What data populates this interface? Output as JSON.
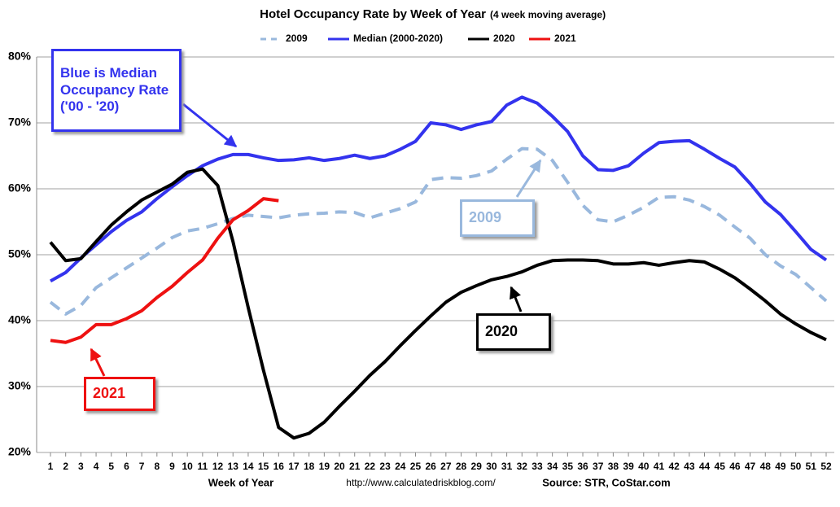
{
  "chart_data": {
    "type": "line",
    "title": "Hotel Occupancy Rate by  Week of Year",
    "subtitle": "(4 week moving average)",
    "x_label": "Week of Year",
    "footer_url": "http://www.calculatedriskblog.com/",
    "source": "Source: STR, CoStar.com",
    "categories": [
      "1",
      "2",
      "3",
      "4",
      "5",
      "6",
      "7",
      "8",
      "9",
      "10",
      "11",
      "12",
      "13",
      "14",
      "15",
      "16",
      "17",
      "18",
      "19",
      "20",
      "21",
      "22",
      "23",
      "24",
      "25",
      "26",
      "27",
      "28",
      "29",
      "30",
      "31",
      "32",
      "33",
      "34",
      "35",
      "36",
      "37",
      "38",
      "39",
      "40",
      "41",
      "42",
      "43",
      "44",
      "45",
      "46",
      "47",
      "48",
      "49",
      "50",
      "51",
      "52"
    ],
    "series": [
      {
        "name": "2009",
        "color": "#99b8dd",
        "dashed": true,
        "values": [
          42.8,
          41,
          42.3,
          45,
          46.5,
          48,
          49.5,
          51,
          52.6,
          53.6,
          54,
          54.7,
          55.5,
          56,
          55.8,
          55.6,
          56,
          56.2,
          56.3,
          56.5,
          56.4,
          55.6,
          56.3,
          57,
          58,
          61.4,
          61.7,
          61.6,
          62,
          62.7,
          64.5,
          66.1,
          66,
          64.3,
          61,
          57.5,
          55.3,
          55,
          56,
          57.2,
          58.7,
          58.8,
          58.3,
          57.3,
          56,
          54.2,
          52.5,
          50,
          48.3,
          47,
          45,
          43
        ]
      },
      {
        "name": "Median (2000-2020)",
        "color": "#3333ee",
        "values": [
          46,
          47.3,
          49.5,
          51.5,
          53.5,
          55.2,
          56.5,
          58.5,
          60.3,
          62,
          63.5,
          64.5,
          65.2,
          65.2,
          64.7,
          64.3,
          64.4,
          64.7,
          64.3,
          64.6,
          65.1,
          64.6,
          65,
          66,
          67.2,
          70,
          69.7,
          69,
          69.7,
          70.2,
          72.7,
          73.9,
          73,
          71,
          68.7,
          65,
          62.9,
          62.8,
          63.5,
          65.4,
          67,
          67.2,
          67.3,
          66,
          64.6,
          63.3,
          60.8,
          58,
          56.1,
          53.5,
          50.8,
          49.2
        ]
      },
      {
        "name": "2020",
        "color": "#000000",
        "values": [
          51.9,
          49.1,
          49.4,
          52,
          54.5,
          56.5,
          58.3,
          59.5,
          60.7,
          62.5,
          63,
          60.5,
          52,
          42,
          32.5,
          23.8,
          22.2,
          22.9,
          24.6,
          27,
          29.3,
          31.7,
          33.8,
          36.2,
          38.5,
          40.7,
          42.8,
          44.3,
          45.3,
          46.2,
          46.7,
          47.4,
          48.4,
          49.1,
          49.2,
          49.2,
          49.1,
          48.6,
          48.6,
          48.8,
          48.4,
          48.8,
          49.1,
          48.9,
          47.8,
          46.5,
          44.8,
          43,
          41,
          39.5,
          38.2,
          37.1
        ]
      },
      {
        "name": "2021",
        "color": "#ee1111",
        "values": [
          37,
          36.7,
          37.5,
          39.4,
          39.4,
          40.3,
          41.5,
          43.5,
          45.2,
          47.3,
          49.2,
          52.5,
          55.3,
          56.7,
          58.5,
          58.2,
          null,
          null,
          null,
          null,
          null,
          null,
          null,
          null,
          null,
          null,
          null,
          null,
          null,
          null,
          null,
          null,
          null,
          null,
          null,
          null,
          null,
          null,
          null,
          null,
          null,
          null,
          null,
          null,
          null,
          null,
          null,
          null,
          null,
          null,
          null,
          null
        ]
      }
    ],
    "ylim": [
      20,
      80
    ],
    "yticks": [
      {
        "value": 20,
        "label": "20%"
      },
      {
        "value": 30,
        "label": "30%"
      },
      {
        "value": 40,
        "label": "40%"
      },
      {
        "value": 50,
        "label": "50%"
      },
      {
        "value": 60,
        "label": "60%"
      },
      {
        "value": 70,
        "label": "70%"
      },
      {
        "value": 80,
        "label": "80%"
      }
    ],
    "grid": true,
    "annotations": [
      "Blue is Median Occupancy Rate ('00 - '20)",
      "2009",
      "2020",
      "2021"
    ]
  }
}
